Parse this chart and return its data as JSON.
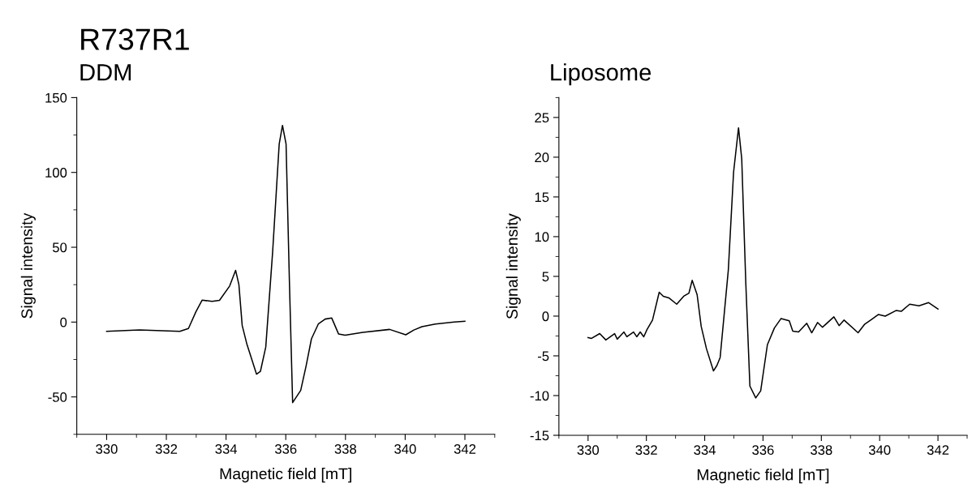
{
  "chart_data": [
    {
      "type": "line",
      "title": "DDM",
      "annotations": [
        "R737R1"
      ],
      "xlabel": "Magnetic field [mT]",
      "ylabel": "Signal intensity",
      "xlim": [
        329,
        343
      ],
      "xticks": [
        330,
        332,
        334,
        336,
        338,
        340,
        342
      ],
      "ylim": [
        -75,
        150
      ],
      "yticks": [
        -50,
        0,
        50,
        100,
        150
      ],
      "series": [
        {
          "color": "#000000",
          "x": [
            330,
            331.1,
            332.45,
            332.74,
            332.99,
            333.2,
            333.53,
            333.78,
            334.12,
            334.32,
            334.43,
            334.54,
            334.7,
            335.02,
            335.15,
            335.33,
            335.56,
            335.78,
            335.89,
            336.01,
            336.12,
            336.23,
            336.5,
            336.68,
            336.86,
            337.09,
            337.32,
            337.54,
            337.77,
            337.99,
            338.58,
            339.48,
            340.02,
            340.29,
            340.56,
            341.01,
            341.64,
            342
          ],
          "values": [
            -6.2,
            -5.3,
            -6.2,
            -4.3,
            6.9,
            14.7,
            13.8,
            14.5,
            24.1,
            34.6,
            25,
            -2.2,
            -14.9,
            -34.8,
            -33,
            -16.7,
            46.8,
            119,
            131.4,
            119,
            28.6,
            -53.8,
            -45.7,
            -29.4,
            -11.2,
            -1.3,
            2,
            2.7,
            -8,
            -8.7,
            -6.9,
            -4.9,
            -8.5,
            -5.3,
            -3.1,
            -1.3,
            0,
            0.5
          ]
        }
      ]
    },
    {
      "type": "line",
      "title": "Liposome",
      "xlabel": "Magnetic field [mT]",
      "ylabel": "Signal intensity",
      "xlim": [
        329,
        343
      ],
      "xticks": [
        330,
        332,
        334,
        336,
        338,
        340,
        342
      ],
      "ylim": [
        -15,
        27.5
      ],
      "yticks": [
        -15,
        -10,
        -5,
        0,
        5,
        10,
        15,
        20,
        25
      ],
      "series": [
        {
          "color": "#000000",
          "x": [
            330,
            330.12,
            330.4,
            330.61,
            330.91,
            331.0,
            331.23,
            331.33,
            331.56,
            331.67,
            331.79,
            331.91,
            332.02,
            332.21,
            332.44,
            332.58,
            332.77,
            333.04,
            333.28,
            333.46,
            333.57,
            333.74,
            333.88,
            334.06,
            334.3,
            334.42,
            334.53,
            334.81,
            334.99,
            335.16,
            335.27,
            335.41,
            335.55,
            335.75,
            335.92,
            336.15,
            336.39,
            336.62,
            336.9,
            337.02,
            337.22,
            337.5,
            337.67,
            337.87,
            338.04,
            338.43,
            338.61,
            338.78,
            339.26,
            339.49,
            339.73,
            339.96,
            340.19,
            340.56,
            340.74,
            341.03,
            341.35,
            341.68,
            342
          ],
          "values": [
            -2.7,
            -2.8,
            -2.2,
            -3,
            -2.2,
            -2.9,
            -2,
            -2.6,
            -2,
            -2.6,
            -2,
            -2.6,
            -1.7,
            -0.5,
            3,
            2.5,
            2.3,
            1.5,
            2.5,
            2.9,
            4.5,
            2.7,
            -1.3,
            -4.1,
            -6.9,
            -6.2,
            -5.2,
            5.8,
            18.1,
            23.7,
            19.8,
            4.1,
            -8.8,
            -10.3,
            -9.4,
            -3.6,
            -1.5,
            -0.3,
            -0.6,
            -1.9,
            -2,
            -0.9,
            -2.1,
            -0.8,
            -1.4,
            -0.1,
            -1.2,
            -0.5,
            -2.1,
            -1,
            -0.4,
            0.2,
            0,
            0.7,
            0.6,
            1.5,
            1.3,
            1.7,
            0.9
          ]
        }
      ]
    }
  ]
}
